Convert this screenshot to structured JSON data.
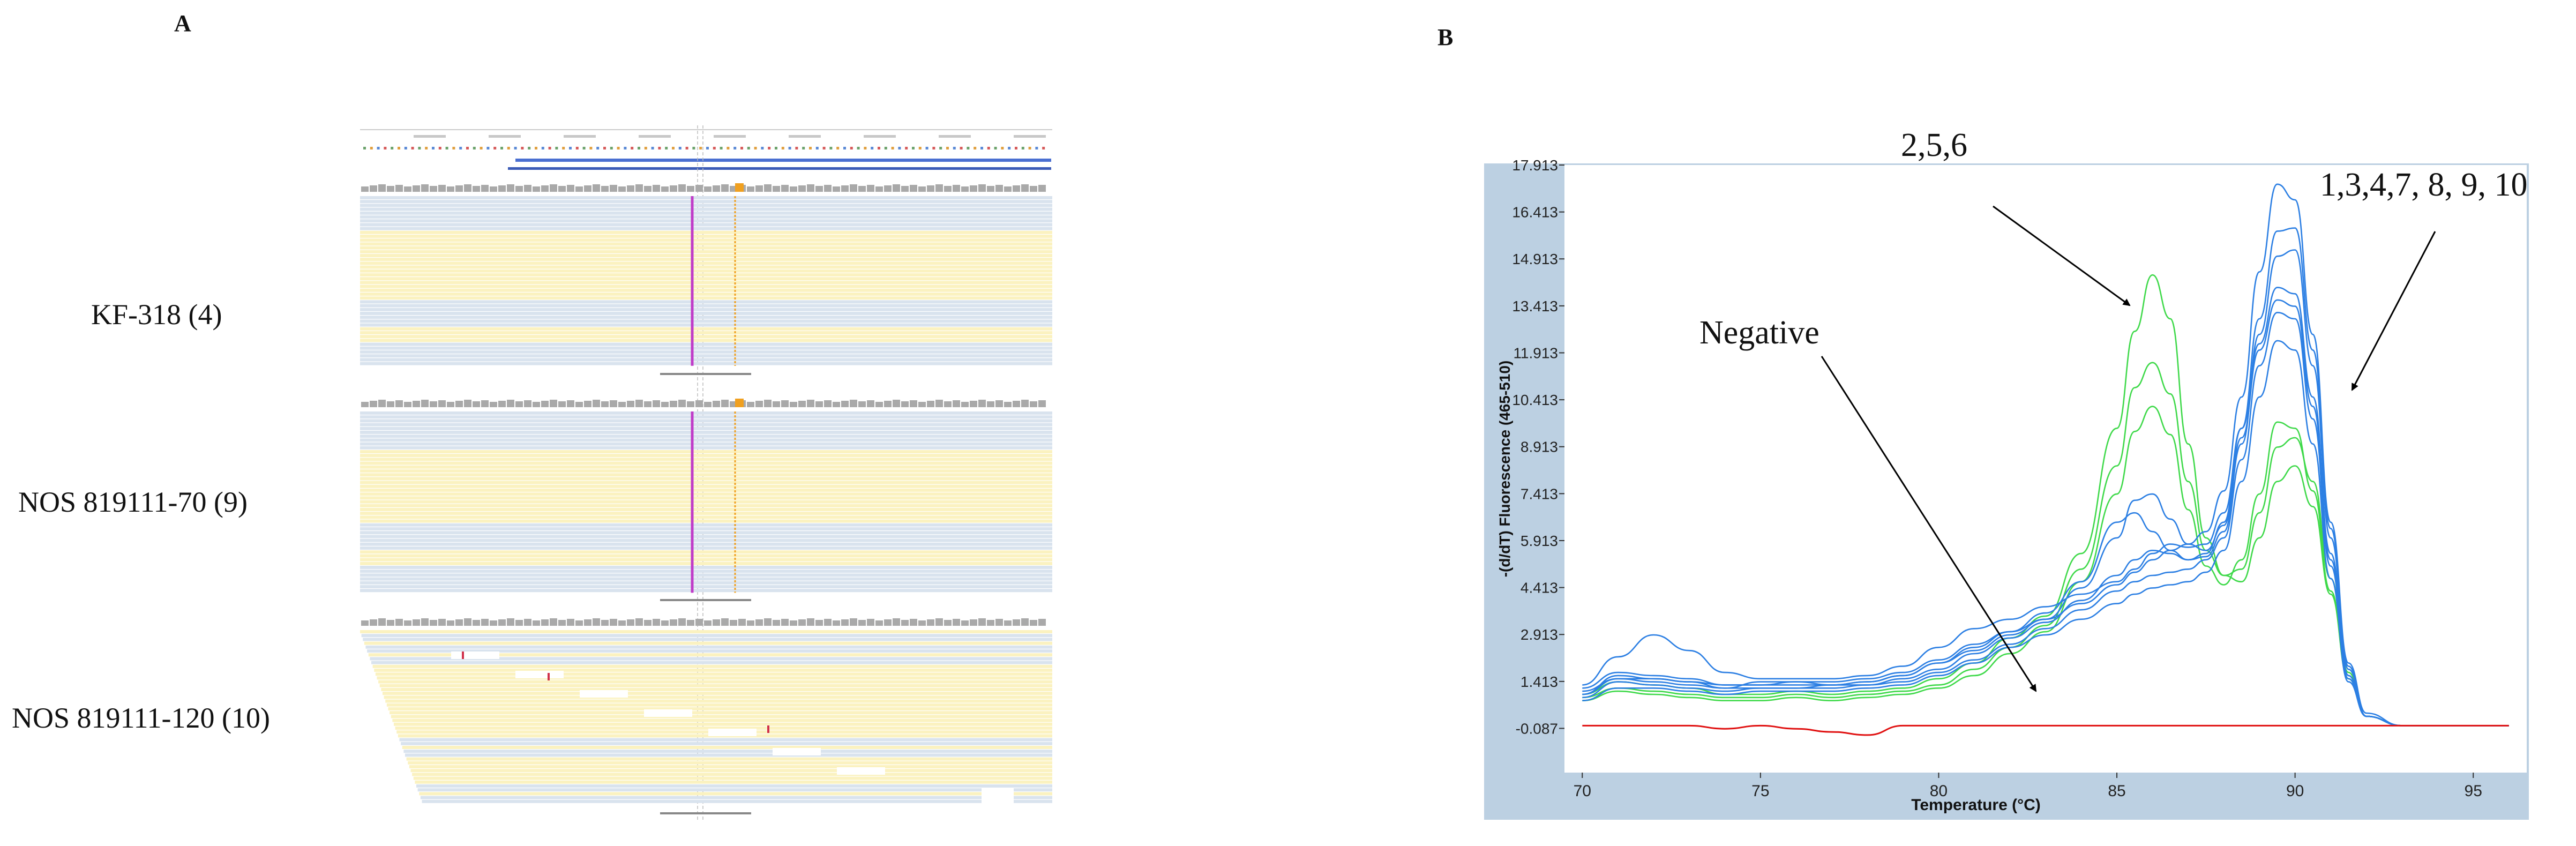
{
  "panel_a": {
    "letter": "A",
    "samples": [
      {
        "label": "KF-318 (4)"
      },
      {
        "label": "NOS 819111-70 (9)"
      },
      {
        "label": "NOS 819111-120 (10)"
      }
    ]
  },
  "panel_b": {
    "letter": "B",
    "annotations": {
      "group_green": "2,5,6",
      "group_blue": "1,3,4,7, 8, 9, 10",
      "negative": "Negative"
    }
  },
  "colors": {
    "frame": "#bcd0e2",
    "green": "#3fd94a",
    "blue": "#2c7fe3",
    "negative": "#e01010",
    "read_blue": "#d9e3ee",
    "read_yellow": "#fbf2c0",
    "coverage": "#a9a9a9",
    "mark_orange": "#f0a020",
    "mark_magenta": "#c03cc8"
  },
  "chart_data": {
    "type": "line",
    "title": "",
    "xlabel": "Temperature (°C)",
    "ylabel": "-(d/dT) Fluorescence (465-510)",
    "xlim": [
      69.5,
      96.5
    ],
    "ylim": [
      -1.5,
      17.913
    ],
    "xticks": [
      70,
      75,
      80,
      85,
      90,
      95
    ],
    "yticks": [
      -0.087,
      1.413,
      2.913,
      4.413,
      5.913,
      7.413,
      8.913,
      10.413,
      11.913,
      13.413,
      14.913,
      16.413,
      17.913
    ],
    "x": [
      70,
      71,
      72,
      73,
      74,
      75,
      76,
      77,
      78,
      79,
      80,
      81,
      82,
      83,
      84,
      85,
      85.5,
      86,
      86.5,
      87,
      87.5,
      88,
      88.5,
      89,
      89.5,
      90,
      90.5,
      91,
      91.5,
      92,
      93,
      94,
      95,
      96
    ],
    "series": [
      {
        "name": "2",
        "group": "green",
        "values": [
          1.0,
          1.4,
          1.3,
          1.2,
          1.0,
          1.0,
          1.1,
          1.0,
          1.1,
          1.2,
          1.5,
          2.0,
          2.8,
          3.5,
          5.5,
          9.5,
          12.6,
          14.4,
          13.0,
          9.0,
          6.0,
          4.8,
          4.6,
          6.0,
          7.8,
          8.3,
          7.0,
          4.2,
          1.5,
          0.3,
          0.0,
          0.0,
          0.0,
          0.0
        ]
      },
      {
        "name": "5",
        "group": "green",
        "values": [
          0.9,
          1.2,
          1.1,
          1.0,
          0.9,
          0.9,
          1.0,
          0.9,
          1.0,
          1.1,
          1.3,
          1.8,
          2.5,
          3.2,
          5.0,
          8.3,
          10.8,
          11.6,
          10.6,
          7.8,
          5.6,
          4.8,
          5.0,
          6.8,
          8.9,
          9.2,
          7.8,
          4.7,
          1.7,
          0.3,
          0.0,
          0.0,
          0.0,
          0.0
        ]
      },
      {
        "name": "6",
        "group": "green",
        "values": [
          0.8,
          1.1,
          1.0,
          0.9,
          0.8,
          0.8,
          0.9,
          0.8,
          0.9,
          1.0,
          1.2,
          1.6,
          2.3,
          3.0,
          4.6,
          7.4,
          9.4,
          10.2,
          9.3,
          6.9,
          5.1,
          4.5,
          5.3,
          7.4,
          9.7,
          9.5,
          7.5,
          4.3,
          1.5,
          0.3,
          0.0,
          0.0,
          0.0,
          0.0
        ]
      },
      {
        "name": "1",
        "group": "blue",
        "values": [
          1.2,
          1.7,
          1.6,
          1.5,
          1.3,
          1.3,
          1.4,
          1.4,
          1.5,
          1.7,
          2.1,
          2.6,
          3.0,
          3.4,
          3.9,
          4.5,
          4.9,
          5.3,
          5.6,
          5.8,
          6.2,
          7.5,
          10.5,
          14.5,
          17.3,
          16.8,
          12.5,
          6.5,
          2.0,
          0.4,
          0.0,
          0.0,
          0.0,
          0.0
        ]
      },
      {
        "name": "3",
        "group": "blue",
        "values": [
          1.0,
          1.5,
          1.4,
          1.3,
          1.2,
          1.2,
          1.2,
          1.3,
          1.3,
          1.5,
          1.8,
          2.3,
          2.8,
          3.3,
          4.0,
          4.8,
          5.3,
          5.6,
          5.5,
          5.3,
          5.5,
          6.5,
          9.5,
          13.0,
          15.8,
          15.9,
          12.0,
          6.3,
          1.9,
          0.3,
          0.0,
          0.0,
          0.0,
          0.0
        ]
      },
      {
        "name": "4",
        "group": "blue",
        "values": [
          1.1,
          1.5,
          1.5,
          1.4,
          1.3,
          1.3,
          1.3,
          1.3,
          1.4,
          1.6,
          2.0,
          2.5,
          3.0,
          3.6,
          4.6,
          6.5,
          6.8,
          6.2,
          5.6,
          5.3,
          5.4,
          6.2,
          9.0,
          12.5,
          15.0,
          15.2,
          11.5,
          6.0,
          1.8,
          0.3,
          0.0,
          0.0,
          0.0,
          0.0
        ]
      },
      {
        "name": "7",
        "group": "blue",
        "values": [
          1.3,
          2.2,
          2.9,
          2.4,
          1.7,
          1.5,
          1.5,
          1.5,
          1.6,
          1.9,
          2.5,
          3.1,
          3.4,
          3.8,
          4.2,
          4.6,
          5.0,
          5.5,
          5.8,
          5.7,
          5.8,
          6.8,
          9.5,
          12.2,
          14.0,
          13.8,
          10.5,
          5.5,
          1.6,
          0.3,
          0.0,
          0.0,
          0.0,
          0.0
        ]
      },
      {
        "name": "8",
        "group": "blue",
        "values": [
          1.0,
          1.6,
          1.5,
          1.4,
          1.2,
          1.4,
          1.4,
          1.3,
          1.4,
          1.6,
          2.0,
          2.4,
          2.9,
          3.4,
          4.4,
          6.0,
          7.2,
          7.4,
          6.6,
          5.8,
          5.6,
          6.4,
          9.2,
          12.0,
          13.6,
          13.4,
          10.2,
          5.3,
          1.6,
          0.3,
          0.0,
          0.0,
          0.0,
          0.0
        ]
      },
      {
        "name": "9",
        "group": "blue",
        "values": [
          0.9,
          1.4,
          1.3,
          1.2,
          1.1,
          1.2,
          1.2,
          1.2,
          1.3,
          1.4,
          1.7,
          2.1,
          2.6,
          3.1,
          3.7,
          4.3,
          4.6,
          4.8,
          4.9,
          5.0,
          5.3,
          6.0,
          8.5,
          11.5,
          13.2,
          13.0,
          9.8,
          5.1,
          1.5,
          0.3,
          0.0,
          0.0,
          0.0,
          0.0
        ]
      },
      {
        "name": "10",
        "group": "blue",
        "values": [
          0.8,
          1.2,
          1.2,
          1.1,
          1.0,
          1.1,
          1.1,
          1.1,
          1.2,
          1.3,
          1.6,
          2.0,
          2.5,
          2.9,
          3.4,
          3.9,
          4.2,
          4.4,
          4.5,
          4.6,
          4.9,
          5.6,
          7.8,
          10.5,
          12.3,
          12.0,
          9.0,
          4.7,
          1.4,
          0.3,
          0.0,
          0.0,
          0.0,
          0.0
        ]
      },
      {
        "name": "Negative",
        "group": "negative",
        "values": [
          0.0,
          0.0,
          0.0,
          0.0,
          -0.1,
          0.0,
          -0.1,
          -0.2,
          -0.3,
          0.0,
          0.0,
          0.0,
          0.0,
          0.0,
          0.0,
          0.0,
          0.0,
          0.0,
          0.0,
          0.0,
          0.0,
          0.0,
          0.0,
          0.0,
          0.0,
          0.0,
          0.0,
          0.0,
          0.0,
          0.0,
          0.0,
          0.0,
          0.0,
          0.0
        ]
      }
    ]
  }
}
